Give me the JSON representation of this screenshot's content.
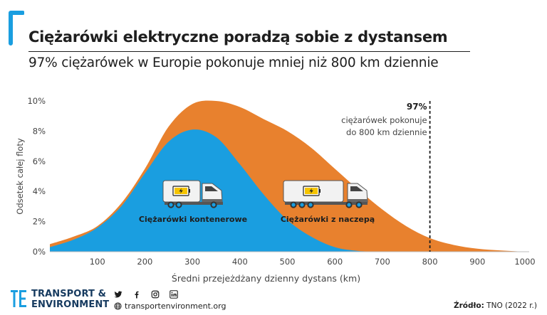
{
  "header": {
    "title": "Ciężarówki elektryczne poradzą sobie z dystansem",
    "subtitle": "97% ciężarówek w Europie pokonuje mniej niż 800 km dziennie"
  },
  "footer": {
    "brand_line1": "TRANSPORT &",
    "brand_line2": "ENVIRONMENT",
    "website": "transportenvironment.org",
    "source_label": "Źródło:",
    "source_value": "TNO (2022 r.)",
    "social_icons": [
      "twitter-icon",
      "facebook-icon",
      "instagram-icon",
      "linkedin-icon"
    ]
  },
  "colors": {
    "orange": "#e8812e",
    "blue": "#1a9ee0",
    "brand": "#163a5f",
    "accent": "#1a9ee0"
  },
  "chart_data": {
    "type": "area",
    "xlabel": "Średni przejeżdżany dzienny dystans (km)",
    "ylabel": "Odsetek całej floty",
    "xlim": [
      0,
      1000
    ],
    "ylim": [
      0,
      10
    ],
    "x_ticks": [
      100,
      200,
      300,
      400,
      500,
      600,
      700,
      800,
      900,
      1000
    ],
    "y_ticks": [
      0,
      2,
      4,
      6,
      8,
      10
    ],
    "y_tick_labels": [
      "0%",
      "2%",
      "4%",
      "6%",
      "8%",
      "10%"
    ],
    "x": [
      0,
      50,
      100,
      150,
      200,
      250,
      300,
      350,
      400,
      450,
      500,
      550,
      600,
      650,
      700,
      750,
      800,
      850,
      900,
      950,
      1000
    ],
    "series": [
      {
        "name": "Ciężarówki z naczepą",
        "color": "#e8812e",
        "values": [
          0.5,
          1.0,
          1.7,
          3.2,
          5.5,
          8.3,
          9.8,
          10.0,
          9.6,
          8.8,
          8.0,
          6.9,
          5.5,
          4.1,
          2.8,
          1.7,
          0.9,
          0.45,
          0.2,
          0.08,
          0.0
        ]
      },
      {
        "name": "Ciężarówki kontenerowe",
        "color": "#1a9ee0",
        "values": [
          0.3,
          0.8,
          1.6,
          3.0,
          5.2,
          7.3,
          8.1,
          7.6,
          5.8,
          3.8,
          2.1,
          1.0,
          0.3,
          0.05,
          0.0,
          0.0,
          0.0,
          0.0,
          0.0,
          0.0,
          0.0
        ]
      }
    ],
    "annotation": {
      "x": 800,
      "value": "97%",
      "line1": "ciężarówek pokonuje",
      "line2": "do 800 km dziennie"
    },
    "legend": "inline",
    "grid": false
  }
}
